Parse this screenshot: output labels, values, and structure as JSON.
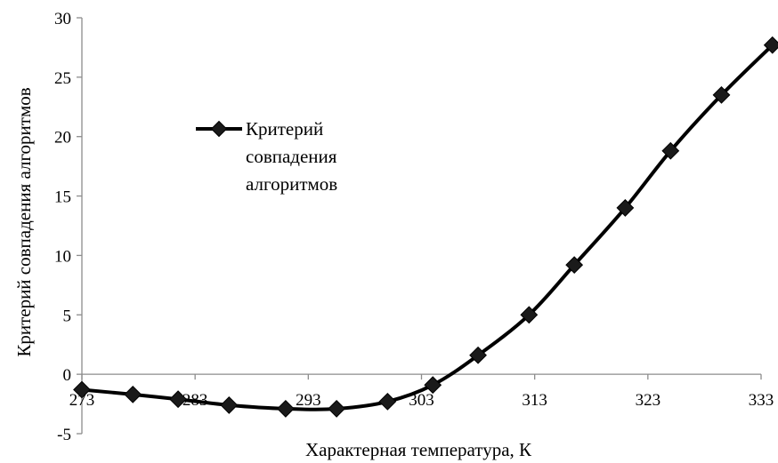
{
  "chart_data": {
    "type": "line",
    "xlabel": "Характерная температура, К",
    "ylabel": "Критерий совпадения алгоритмов",
    "xlim": [
      273,
      333
    ],
    "ylim": [
      -5,
      30
    ],
    "x_ticks": [
      "273",
      "283",
      "293",
      "303",
      "313",
      "323",
      "333"
    ],
    "y_ticks": [
      "-5",
      "0",
      "5",
      "10",
      "15",
      "20",
      "25",
      "30"
    ],
    "grid": false,
    "legend_position": "upper-left",
    "series": [
      {
        "name": "Критерий совпадения алгоритмов",
        "color": "#000000",
        "marker": "diamond",
        "x": [
          273,
          277.5,
          281.5,
          286,
          291,
          295.5,
          300,
          304,
          308,
          312.5,
          316.5,
          321,
          325,
          329.5,
          334
        ],
        "y": [
          -1.3,
          -1.7,
          -2.1,
          -2.6,
          -2.9,
          -2.9,
          -2.3,
          -0.9,
          1.6,
          5.0,
          9.2,
          14.0,
          18.8,
          23.5,
          27.7
        ]
      }
    ]
  },
  "legend": {
    "lines": [
      "Критерий",
      "совпадения",
      "алгоритмов"
    ]
  }
}
